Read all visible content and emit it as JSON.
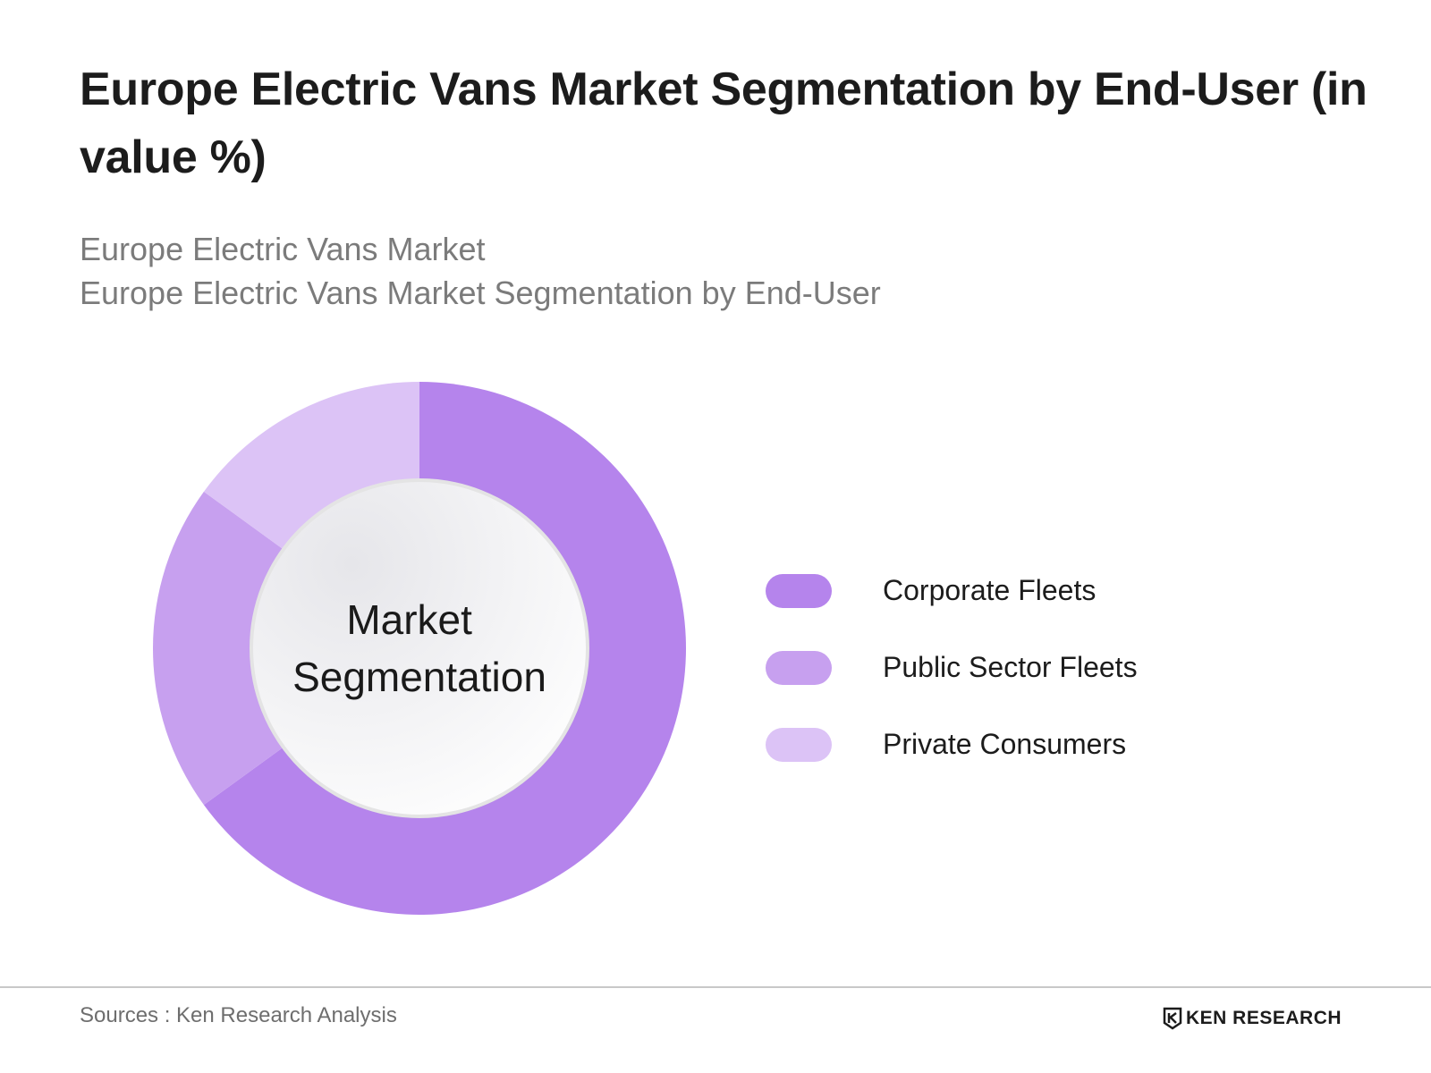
{
  "title": "Europe Electric Vans Market Segmentation by End-User (in value %)",
  "subtitle_line1": "Europe Electric Vans Market",
  "subtitle_line2": "Europe Electric Vans Market Segmentation by End-User",
  "chart_data": {
    "type": "pie",
    "variant": "donut",
    "center_label": [
      "Market",
      "Segmentation"
    ],
    "categories": [
      "Corporate Fleets",
      "Public Sector Fleets",
      "Private Consumers"
    ],
    "values": [
      65,
      20,
      15
    ],
    "colors": [
      "#b584ec",
      "#c7a0ef",
      "#dcc3f6"
    ],
    "legend_position": "right"
  },
  "footer": {
    "source": "Sources : Ken Research Analysis",
    "brand": "KEN RESEARCH"
  }
}
